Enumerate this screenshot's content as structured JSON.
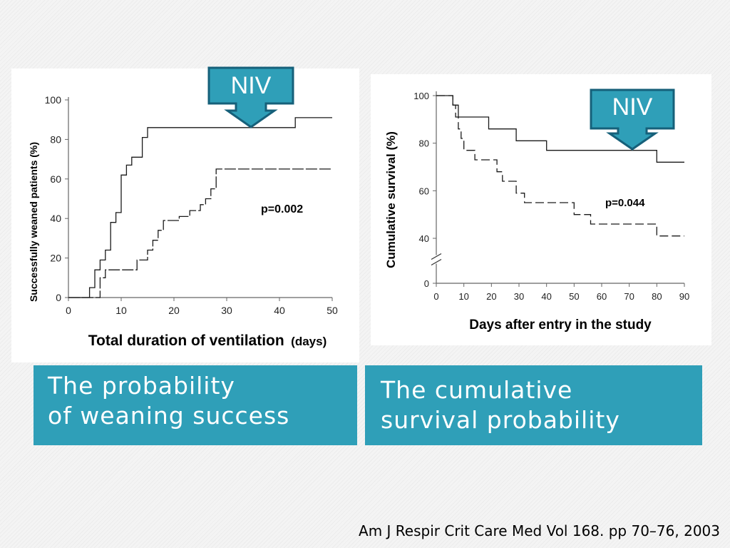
{
  "colors": {
    "accent": "#2f9fb8",
    "callout": "#2f9fb8",
    "callout_border": "#16607a"
  },
  "chart_data": [
    {
      "type": "line",
      "chart_style": "step",
      "ylabel": "Successfully weaned patients (%)",
      "xlabel_main": "Total duration of ventilation",
      "xlabel_unit": "(days)",
      "xlim": [
        0,
        50
      ],
      "ylim": [
        0,
        100
      ],
      "x_ticks": [
        "0",
        "10",
        "20",
        "30",
        "40",
        "50"
      ],
      "y_ticks": [
        "0",
        "20",
        "40",
        "60",
        "80",
        "100"
      ],
      "grid": false,
      "annotation": "p=0.002",
      "callout": "NIV",
      "series": [
        {
          "style": "solid",
          "points": [
            [
              0,
              0
            ],
            [
              4,
              0
            ],
            [
              4,
              5
            ],
            [
              5,
              5
            ],
            [
              5,
              14
            ],
            [
              6,
              14
            ],
            [
              6,
              19
            ],
            [
              7,
              19
            ],
            [
              7,
              24
            ],
            [
              8,
              24
            ],
            [
              8,
              38
            ],
            [
              9,
              38
            ],
            [
              9,
              43
            ],
            [
              10,
              43
            ],
            [
              10,
              62
            ],
            [
              11,
              62
            ],
            [
              11,
              67
            ],
            [
              12,
              67
            ],
            [
              12,
              71
            ],
            [
              14,
              71
            ],
            [
              14,
              81
            ],
            [
              15,
              81
            ],
            [
              15,
              86
            ],
            [
              43,
              86
            ],
            [
              43,
              91
            ],
            [
              50,
              91
            ]
          ]
        },
        {
          "style": "step",
          "points": [
            [
              0,
              0
            ],
            [
              6,
              0
            ],
            [
              6,
              10
            ],
            [
              7,
              10
            ],
            [
              7,
              14
            ],
            [
              13,
              14
            ],
            [
              13,
              19
            ],
            [
              15,
              19
            ],
            [
              15,
              24
            ],
            [
              16,
              24
            ],
            [
              16,
              29
            ],
            [
              17,
              29
            ],
            [
              17,
              34
            ],
            [
              18,
              34
            ],
            [
              18,
              39
            ],
            [
              21,
              39
            ],
            [
              21,
              41
            ],
            [
              23,
              41
            ],
            [
              23,
              44
            ],
            [
              25,
              44
            ],
            [
              25,
              47
            ],
            [
              26,
              47
            ],
            [
              26,
              50
            ],
            [
              27,
              50
            ],
            [
              27,
              55
            ],
            [
              28,
              55
            ],
            [
              28,
              65
            ],
            [
              50,
              65
            ]
          ]
        }
      ]
    },
    {
      "type": "line",
      "chart_style": "step",
      "ylabel": "Cumulative survival (%)",
      "xlabel": "Days after entry in the study",
      "xlim": [
        0,
        90
      ],
      "ylim": [
        0,
        100
      ],
      "y_axis_break": [
        0,
        40
      ],
      "x_ticks": [
        "0",
        "10",
        "20",
        "30",
        "40",
        "50",
        "60",
        "70",
        "80",
        "90"
      ],
      "y_ticks": [
        "0",
        "40",
        "60",
        "80",
        "100"
      ],
      "grid": false,
      "annotation": "p=0.044",
      "callout": "NIV",
      "series": [
        {
          "style": "solid",
          "points": [
            [
              0,
              100
            ],
            [
              6,
              100
            ],
            [
              6,
              96
            ],
            [
              8,
              96
            ],
            [
              8,
              91
            ],
            [
              19,
              91
            ],
            [
              19,
              86
            ],
            [
              29,
              86
            ],
            [
              29,
              81
            ],
            [
              40,
              81
            ],
            [
              40,
              77
            ],
            [
              80,
              77
            ],
            [
              80,
              72
            ],
            [
              90,
              72
            ]
          ]
        },
        {
          "style": "dashed",
          "points": [
            [
              0,
              100
            ],
            [
              6,
              100
            ],
            [
              6,
              96
            ],
            [
              7,
              96
            ],
            [
              7,
              91
            ],
            [
              8,
              91
            ],
            [
              8,
              86
            ],
            [
              9,
              86
            ],
            [
              9,
              82
            ],
            [
              10,
              82
            ],
            [
              10,
              77
            ],
            [
              14,
              77
            ],
            [
              14,
              73
            ],
            [
              22,
              73
            ],
            [
              22,
              68
            ],
            [
              24,
              68
            ],
            [
              24,
              64
            ],
            [
              29,
              64
            ],
            [
              29,
              59
            ],
            [
              32,
              59
            ],
            [
              32,
              55
            ],
            [
              50,
              55
            ],
            [
              50,
              50
            ],
            [
              56,
              50
            ],
            [
              56,
              46
            ],
            [
              80,
              46
            ],
            [
              80,
              41
            ],
            [
              90,
              41
            ]
          ]
        }
      ]
    }
  ],
  "captions": {
    "left": [
      "The probability",
      "of weaning success"
    ],
    "right": [
      "The cumulative",
      "survival probability"
    ]
  },
  "citation": "Am J Respir Crit Care Med Vol 168. pp 70–76, 2003"
}
